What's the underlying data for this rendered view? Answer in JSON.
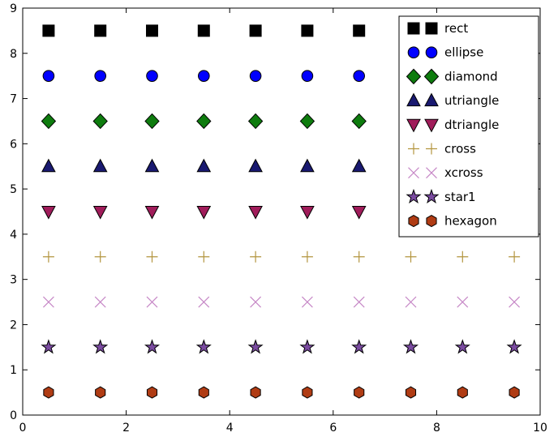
{
  "chart_data": {
    "type": "scatter",
    "title": "",
    "xlabel": "",
    "ylabel": "",
    "xlim": [
      0,
      10
    ],
    "ylim": [
      0,
      9
    ],
    "xticks": [
      0,
      2,
      4,
      6,
      8,
      10
    ],
    "yticks": [
      0,
      1,
      2,
      3,
      4,
      5,
      6,
      7,
      8,
      9
    ],
    "grid": false,
    "background": "#ffffff",
    "axis_color": "#000000",
    "x": [
      0.5,
      1.5,
      2.5,
      3.5,
      4.5,
      5.5,
      6.5,
      7.5,
      8.5,
      9.5
    ],
    "series": [
      {
        "name": "rect",
        "marker": "rect",
        "y": 8.5,
        "color": "#000000"
      },
      {
        "name": "ellipse",
        "marker": "ellipse",
        "y": 7.5,
        "color": "#0000ff"
      },
      {
        "name": "diamond",
        "marker": "diamond",
        "y": 6.5,
        "color": "#0e7c0e"
      },
      {
        "name": "utriangle",
        "marker": "utriangle",
        "y": 5.5,
        "color": "#191970"
      },
      {
        "name": "dtriangle",
        "marker": "dtriangle",
        "y": 4.5,
        "color": "#a01c5a"
      },
      {
        "name": "cross",
        "marker": "cross",
        "y": 3.5,
        "color": "#b3953f"
      },
      {
        "name": "xcross",
        "marker": "xcross",
        "y": 2.5,
        "color": "#c687c6"
      },
      {
        "name": "star1",
        "marker": "star1",
        "y": 1.5,
        "color": "#7a4ba0"
      },
      {
        "name": "hexagon",
        "marker": "hexagon",
        "y": 0.5,
        "color": "#b03c14"
      }
    ],
    "legend": {
      "position": "upper right",
      "numpoints": 2,
      "entries": [
        "rect",
        "ellipse",
        "diamond",
        "utriangle",
        "dtriangle",
        "cross",
        "xcross",
        "star1",
        "hexagon"
      ]
    }
  }
}
